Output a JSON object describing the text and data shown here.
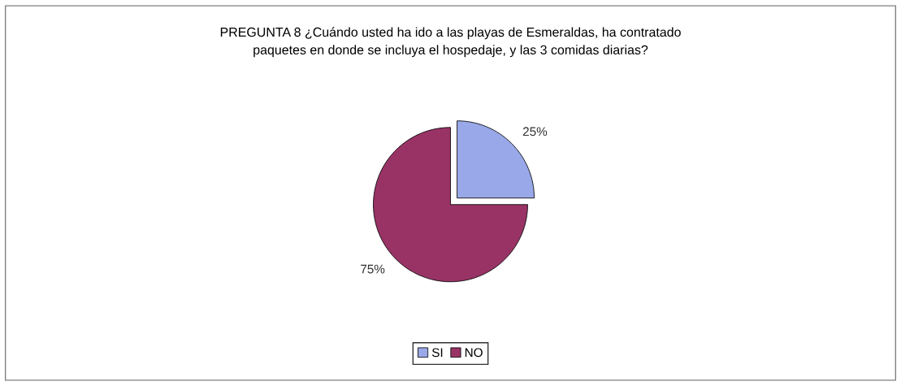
{
  "chart_data": {
    "type": "pie",
    "title": "PREGUNTA 8 ¿Cuándo usted ha ido a las playas de Esmeraldas, ha contratado\npaquetes en donde se incluya el hospedaje, y las 3 comidas diarias?",
    "categories": [
      "SI",
      "NO"
    ],
    "values": [
      25,
      75
    ],
    "colors": [
      "#99a8e8",
      "#993366"
    ],
    "value_labels": [
      "25%",
      "75%"
    ],
    "legend": "bottom"
  }
}
